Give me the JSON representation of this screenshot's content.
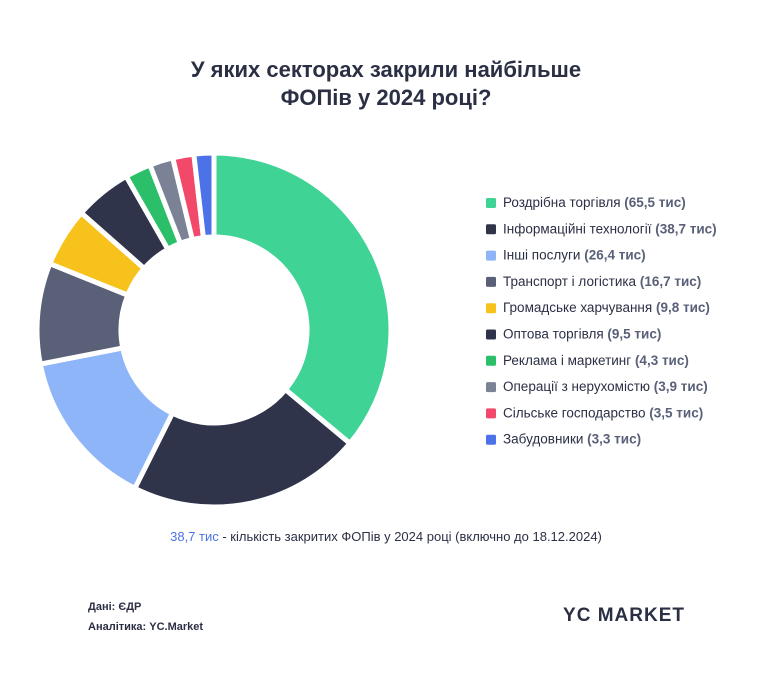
{
  "chart_data": {
    "type": "donut",
    "title": [
      "У яких секторах закрили найбільше",
      "ФОПів у 2024 році?"
    ],
    "categories": [
      "Роздрібна торгівля",
      "Інформаційні технології",
      "Інші послуги",
      "Транспорт і логістика",
      "Громадське харчування",
      "Оптова торгівля",
      "Реклама і маркетинг",
      "Операції з нерухомістю",
      "Сільське господарство",
      "Забудовники"
    ],
    "values": [
      65.5,
      38.7,
      26.4,
      16.7,
      9.8,
      9.5,
      4.3,
      3.9,
      3.5,
      3.3
    ],
    "value_labels": [
      "(65,5 тис)",
      "(38,7 тис)",
      "(26,4 тис)",
      "(16,7 тис)",
      "(9,8 тис)",
      "(9,5 тис)",
      "(4,3 тис)",
      "(3,9 тис)",
      "(3,5 тис)",
      "(3,3 тис)"
    ],
    "colors": [
      "#3fd396",
      "#30344b",
      "#8db5f8",
      "#596078",
      "#f7c21c",
      "#30344b",
      "#2cbf69",
      "#7b8296",
      "#f2496b",
      "#4b72e8"
    ],
    "legend": "right"
  },
  "note": {
    "highlight": "38,7 тис",
    "text": " - кількість закритих ФОПів у 2024 році (включно до 18.12.2024)"
  },
  "sources": [
    "Дані:  ЄДР",
    "Аналітика: YC.Market"
  ],
  "logo": "YC MARKET"
}
